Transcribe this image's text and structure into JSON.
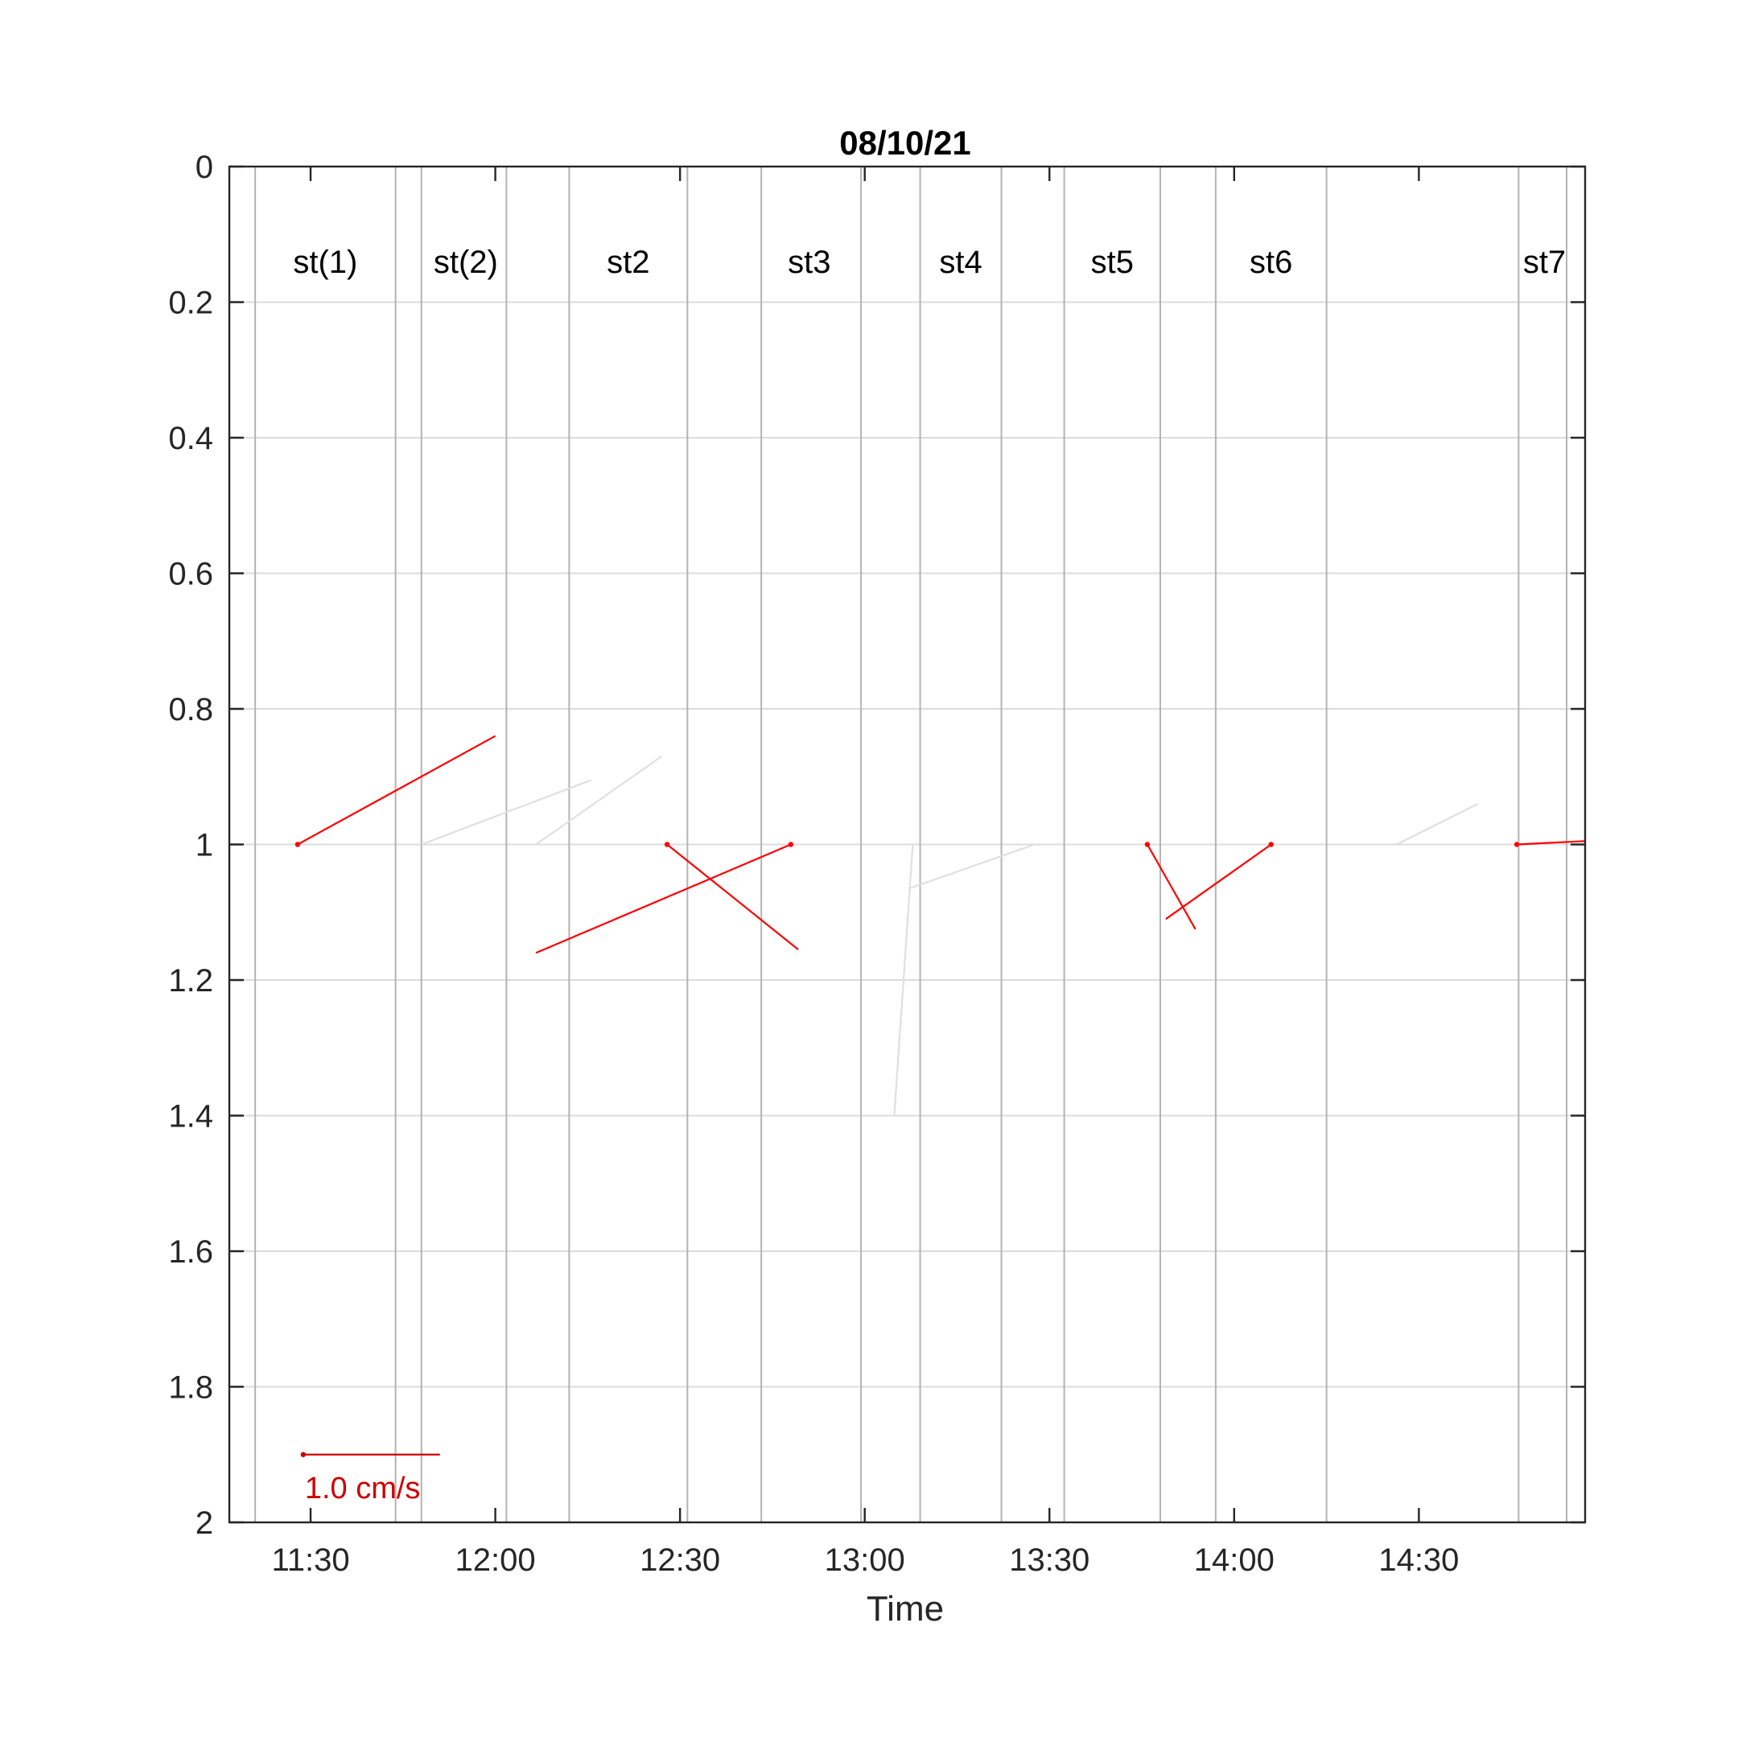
{
  "chart_data": {
    "type": "scatter",
    "subtype": "current-vector-stick-plot",
    "title": "08/10/21",
    "xlabel": "Time",
    "ylabel": "",
    "x_tick_labels": [
      "11:30",
      "12:00",
      "12:30",
      "13:00",
      "13:30",
      "14:00",
      "14:30"
    ],
    "x_ticks_hours": [
      11.5,
      12.0,
      12.5,
      13.0,
      13.5,
      14.0,
      14.5
    ],
    "xlim_hours": [
      11.28,
      14.95
    ],
    "ylim": [
      0,
      2
    ],
    "y_reversed": true,
    "y_ticks": [
      0,
      0.2,
      0.4,
      0.6,
      0.8,
      1,
      1.2,
      1.4,
      1.6,
      1.8,
      2
    ],
    "y_tick_labels": [
      "0",
      "0.2",
      "0.4",
      "0.6",
      "0.8",
      "1",
      "1.2",
      "1.4",
      "1.6",
      "1.8",
      "2"
    ],
    "grid": true,
    "station_boundaries_hours": [
      11.35,
      11.73,
      11.8,
      12.03,
      12.2,
      12.52,
      12.72,
      12.99,
      13.15,
      13.37,
      13.54,
      13.8,
      13.95,
      14.25,
      14.77,
      14.9
    ],
    "stations": [
      {
        "label": "st(1)",
        "x_hours": 11.54
      },
      {
        "label": "st(2)",
        "x_hours": 11.92
      },
      {
        "label": "st2",
        "x_hours": 12.36
      },
      {
        "label": "st3",
        "x_hours": 12.85
      },
      {
        "label": "st4",
        "x_hours": 13.26
      },
      {
        "label": "st5",
        "x_hours": 13.67
      },
      {
        "label": "st6",
        "x_hours": 14.1
      },
      {
        "label": "st7",
        "x_hours": 14.84
      }
    ],
    "series": [
      {
        "color": "#ff0000",
        "vectors": [
          {
            "x_hours": 11.465,
            "depth": 1.0,
            "end_x_hours": 12.0,
            "end_depth": 0.84
          },
          {
            "x_hours": 12.465,
            "depth": 1.0,
            "end_x_hours": 12.82,
            "end_depth": 1.155
          },
          {
            "x_hours": 12.8,
            "depth": 1.0,
            "end_x_hours": 12.11,
            "end_depth": 1.16
          },
          {
            "x_hours": 13.765,
            "depth": 1.0,
            "end_x_hours": 13.895,
            "end_depth": 1.125
          },
          {
            "x_hours": 14.1,
            "depth": 1.0,
            "end_x_hours": 13.815,
            "end_depth": 1.11
          },
          {
            "x_hours": 14.765,
            "depth": 1.0,
            "end_x_hours": 14.95,
            "end_depth": 0.995
          }
        ]
      },
      {
        "color": "#e0e0e0",
        "vectors": [
          {
            "x_hours": 11.8,
            "depth": 1.0,
            "end_x_hours": 12.26,
            "end_depth": 0.905
          },
          {
            "x_hours": 12.11,
            "depth": 1.0,
            "end_x_hours": 12.45,
            "end_depth": 0.87
          },
          {
            "x_hours": 13.13,
            "depth": 1.0,
            "end_x_hours": 13.08,
            "end_depth": 1.4
          },
          {
            "x_hours": 13.12,
            "depth": 1.065,
            "end_x_hours": 13.46,
            "end_depth": 1.0
          },
          {
            "x_hours": 14.44,
            "depth": 1.0,
            "end_x_hours": 14.66,
            "end_depth": 0.94
          }
        ]
      }
    ],
    "scale_arrow": {
      "label": "1.0 cm/s",
      "color": "#cc0000",
      "x_hours": 11.48,
      "depth": 1.9,
      "end_x_hours": 11.85
    }
  }
}
